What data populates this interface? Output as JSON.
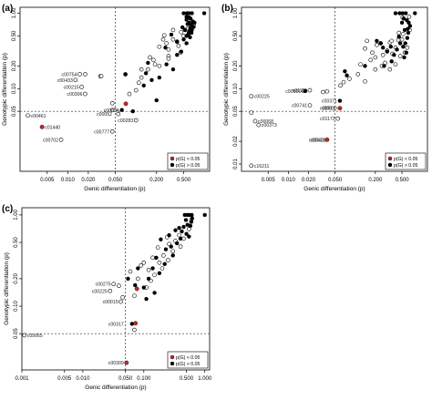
{
  "chart_data": [
    {
      "panel_label": "(a)",
      "type": "scatter",
      "scale": "log-log",
      "xlabel": "Genic differentiation (p)",
      "ylabel": "Genotypic differentiation (p)",
      "xlim": [
        0.002,
        1.2
      ],
      "ylim": [
        0.008,
        1.2
      ],
      "x_ticks": [
        "0.005",
        "0.010",
        "0.020",
        "0.050",
        "0.200",
        "0.500"
      ],
      "x_tick_values": [
        0.005,
        0.01,
        0.02,
        0.05,
        0.2,
        0.5
      ],
      "y_ticks": [
        "0.05",
        "0.10",
        "0.20",
        "0.50",
        "1.00"
      ],
      "y_tick_values": [
        0.05,
        0.1,
        0.2,
        0.5,
        1.0
      ],
      "threshold_x": 0.05,
      "threshold_y": 0.05,
      "legend": {
        "position": "bottom-right",
        "entries": [
          "p(G) < 0.05",
          "p(G) > 0.05"
        ],
        "colors": [
          "#c0282d",
          "#000000"
        ]
      },
      "open_points": [
        [
          0.015,
          0.155
        ],
        [
          0.018,
          0.155
        ],
        [
          0.013,
          0.13
        ],
        [
          0.016,
          0.105
        ],
        [
          0.018,
          0.085
        ],
        [
          0.11,
          0.12
        ],
        [
          0.07,
          0.155
        ],
        [
          0.15,
          0.18
        ],
        [
          0.19,
          0.21
        ],
        [
          0.3,
          0.27
        ],
        [
          0.22,
          0.36
        ],
        [
          0.3,
          0.33
        ],
        [
          0.42,
          0.37
        ],
        [
          0.35,
          0.45
        ],
        [
          0.26,
          0.51
        ],
        [
          0.46,
          0.56
        ],
        [
          0.35,
          0.6
        ],
        [
          0.53,
          0.6
        ],
        [
          0.3,
          0.25
        ],
        [
          0.22,
          0.2
        ],
        [
          0.12,
          0.14
        ],
        [
          0.18,
          0.24
        ],
        [
          0.4,
          0.42
        ],
        [
          0.5,
          0.5
        ],
        [
          0.58,
          0.63
        ],
        [
          0.25,
          0.45
        ],
        [
          0.12,
          0.18
        ],
        [
          0.16,
          0.26
        ],
        [
          0.45,
          0.3
        ],
        [
          0.7,
          0.7
        ],
        [
          0.1,
          0.095
        ],
        [
          0.08,
          0.085
        ],
        [
          0.28,
          0.4
        ],
        [
          0.6,
          0.55
        ],
        [
          0.055,
          0.046
        ],
        [
          0.045,
          0.064
        ],
        [
          0.045,
          0.052
        ],
        [
          0.049,
          0.052
        ],
        [
          0.1,
          0.038
        ],
        [
          0.045,
          0.027
        ],
        [
          0.008,
          0.021
        ],
        [
          0.0026,
          0.044
        ],
        [
          0.03,
          0.146
        ],
        [
          0.031,
          0.146
        ]
      ],
      "filled_points": [
        [
          0.062,
          0.052
        ],
        [
          0.09,
          0.05
        ],
        [
          0.2,
          0.07
        ],
        [
          0.13,
          0.11
        ],
        [
          0.07,
          0.155
        ],
        [
          0.17,
          0.13
        ],
        [
          0.14,
          0.16
        ],
        [
          0.22,
          0.14
        ],
        [
          0.35,
          0.18
        ],
        [
          0.28,
          0.21
        ],
        [
          0.15,
          0.22
        ],
        [
          0.4,
          0.28
        ],
        [
          0.46,
          0.31
        ],
        [
          0.27,
          0.35
        ],
        [
          0.55,
          0.4
        ],
        [
          0.4,
          0.42
        ],
        [
          0.33,
          0.52
        ],
        [
          0.55,
          0.5
        ],
        [
          0.6,
          0.56
        ],
        [
          0.52,
          0.6
        ],
        [
          0.62,
          0.62
        ],
        [
          0.65,
          0.7
        ],
        [
          0.6,
          0.75
        ],
        [
          0.68,
          0.78
        ],
        [
          0.63,
          0.85
        ],
        [
          0.55,
          0.9
        ],
        [
          0.65,
          0.55
        ],
        [
          0.48,
          0.65
        ],
        [
          0.62,
          0.48
        ],
        [
          0.58,
          0.52
        ],
        [
          0.66,
          0.6
        ],
        [
          0.7,
          0.66
        ],
        [
          0.72,
          0.75
        ],
        [
          0.5,
          0.45
        ],
        [
          1.0,
          1.0
        ],
        [
          0.5,
          1.0
        ],
        [
          0.56,
          1.0
        ],
        [
          0.6,
          1.0
        ],
        [
          0.66,
          1.0
        ],
        [
          0.55,
          0.82
        ],
        [
          0.6,
          0.88
        ],
        [
          0.64,
          0.68
        ],
        [
          0.57,
          0.72
        ]
      ],
      "red_points": [
        [
          0.0042,
          0.031
        ],
        [
          0.071,
          0.063
        ]
      ],
      "labeled_points": [
        {
          "label": "c00754",
          "x": 0.015,
          "y": 0.155
        },
        {
          "label": "c00433",
          "x": 0.013,
          "y": 0.13
        },
        {
          "label": "c00215",
          "x": 0.016,
          "y": 0.105
        },
        {
          "label": "c00306",
          "x": 0.018,
          "y": 0.085
        },
        {
          "label": "c00054",
          "x": 0.062,
          "y": 0.052
        },
        {
          "label": "c00052",
          "x": 0.049,
          "y": 0.046
        },
        {
          "label": "c00283",
          "x": 0.1,
          "y": 0.038
        },
        {
          "label": "c00777",
          "x": 0.045,
          "y": 0.027
        },
        {
          "label": "c00702",
          "x": 0.008,
          "y": 0.021
        },
        {
          "label": "c01440",
          "x": 0.0042,
          "y": 0.031
        },
        {
          "label": "c00461",
          "x": 0.0026,
          "y": 0.044
        }
      ]
    },
    {
      "panel_label": "(b)",
      "type": "scatter",
      "scale": "log-log",
      "xlabel": "Genic differentiation (p)",
      "ylabel": "Genotypic differentiation (p)",
      "xlim": [
        0.002,
        1.2
      ],
      "ylim": [
        0.008,
        1.2
      ],
      "x_ticks": [
        "0.005",
        "0.010",
        "0.020",
        "0.050",
        "0.200",
        "0.500"
      ],
      "x_tick_values": [
        0.005,
        0.01,
        0.02,
        0.05,
        0.2,
        0.5
      ],
      "y_ticks": [
        "0.01",
        "0.02",
        "0.05",
        "0.10",
        "0.20",
        "0.50",
        "1.00"
      ],
      "y_tick_values": [
        0.01,
        0.02,
        0.05,
        0.1,
        0.2,
        0.5,
        1.0
      ],
      "threshold_x": 0.05,
      "threshold_y": 0.05,
      "legend": {
        "position": "bottom-right",
        "entries": [
          "p(G) < 0.05",
          "p(G) > 0.05"
        ],
        "colors": [
          "#c0282d",
          "#000000"
        ]
      },
      "open_points": [
        [
          0.0028,
          0.079
        ],
        [
          0.0028,
          0.0095
        ],
        [
          0.0028,
          0.048
        ],
        [
          0.0032,
          0.037
        ],
        [
          0.0036,
          0.033
        ],
        [
          0.017,
          0.093
        ],
        [
          0.021,
          0.095
        ],
        [
          0.021,
          0.06
        ],
        [
          0.033,
          0.09
        ],
        [
          0.038,
          0.092
        ],
        [
          0.055,
          0.04
        ],
        [
          0.067,
          0.122
        ],
        [
          0.082,
          0.135
        ],
        [
          0.11,
          0.155
        ],
        [
          0.06,
          0.11
        ],
        [
          0.14,
          0.125
        ],
        [
          0.2,
          0.18
        ],
        [
          0.17,
          0.24
        ],
        [
          0.25,
          0.2
        ],
        [
          0.14,
          0.34
        ],
        [
          0.3,
          0.32
        ],
        [
          0.33,
          0.41
        ],
        [
          0.21,
          0.38
        ],
        [
          0.4,
          0.35
        ],
        [
          0.5,
          0.45
        ],
        [
          0.45,
          0.55
        ],
        [
          0.36,
          0.29
        ],
        [
          0.26,
          0.28
        ],
        [
          0.18,
          0.3
        ],
        [
          0.55,
          0.3
        ],
        [
          0.52,
          0.53
        ],
        [
          0.4,
          0.21
        ],
        [
          0.35,
          0.43
        ],
        [
          0.44,
          0.44
        ],
        [
          0.6,
          0.35
        ],
        [
          0.65,
          0.6
        ],
        [
          0.51,
          0.88
        ],
        [
          0.64,
          0.9
        ],
        [
          0.15,
          0.43
        ],
        [
          0.24,
          0.4
        ],
        [
          0.28,
          0.22
        ],
        [
          0.33,
          0.18
        ],
        [
          0.2,
          0.26
        ],
        [
          0.12,
          0.21
        ],
        [
          0.47,
          0.27
        ]
      ],
      "filled_points": [
        [
          0.018,
          0.093
        ],
        [
          0.059,
          0.069
        ],
        [
          0.075,
          0.15
        ],
        [
          0.07,
          0.17
        ],
        [
          0.14,
          0.2
        ],
        [
          0.26,
          0.35
        ],
        [
          0.24,
          0.4
        ],
        [
          0.35,
          0.23
        ],
        [
          0.3,
          0.31
        ],
        [
          0.38,
          0.28
        ],
        [
          0.42,
          0.33
        ],
        [
          0.47,
          0.4
        ],
        [
          0.52,
          0.36
        ],
        [
          0.54,
          0.26
        ],
        [
          0.6,
          0.47
        ],
        [
          0.62,
          0.55
        ],
        [
          0.55,
          0.6
        ],
        [
          0.56,
          0.4
        ],
        [
          0.5,
          0.75
        ],
        [
          0.63,
          0.75
        ],
        [
          0.53,
          0.85
        ],
        [
          0.61,
          0.62
        ],
        [
          0.58,
          0.3
        ],
        [
          0.45,
          0.49
        ],
        [
          0.66,
          0.68
        ],
        [
          0.34,
          0.36
        ],
        [
          0.27,
          0.2
        ],
        [
          0.21,
          0.43
        ],
        [
          0.4,
          1.0
        ],
        [
          0.46,
          1.0
        ],
        [
          0.51,
          1.0
        ],
        [
          0.57,
          1.0
        ],
        [
          0.78,
          1.0
        ],
        [
          0.59,
          0.81
        ]
      ],
      "red_points": [
        [
          0.059,
          0.055
        ],
        [
          0.038,
          0.021
        ]
      ],
      "labeled_points": [
        {
          "label": "c00225",
          "x": 0.0028,
          "y": 0.079
        },
        {
          "label": "c00501",
          "x": 0.017,
          "y": 0.093
        },
        {
          "label": "c01115",
          "x": 0.021,
          "y": 0.095
        },
        {
          "label": "c00371",
          "x": 0.059,
          "y": 0.069
        },
        {
          "label": "c00741",
          "x": 0.021,
          "y": 0.06
        },
        {
          "label": "c00511",
          "x": 0.055,
          "y": 0.055
        },
        {
          "label": "c00699",
          "x": 0.059,
          "y": 0.055
        },
        {
          "label": "c00068",
          "x": 0.0032,
          "y": 0.037
        },
        {
          "label": "c00373",
          "x": 0.0036,
          "y": 0.033
        },
        {
          "label": "c00533",
          "x": 0.038,
          "y": 0.021
        },
        {
          "label": "c00401",
          "x": 0.04,
          "y": 0.021
        },
        {
          "label": "c01172",
          "x": 0.055,
          "y": 0.04
        },
        {
          "label": "c16211",
          "x": 0.0028,
          "y": 0.0095
        }
      ]
    },
    {
      "panel_label": "(c)",
      "type": "scatter",
      "scale": "log-log",
      "xlabel": "Genic differentiation (p)",
      "ylabel": "Genotypic differentiation (p)",
      "xlim": [
        0.001,
        1.2
      ],
      "ylim": [
        0.02,
        1.2
      ],
      "x_ticks": [
        "0.001",
        "0.005",
        "0.010",
        "0.050",
        "0.100",
        "0.500",
        "1.000"
      ],
      "x_tick_values": [
        0.001,
        0.005,
        0.01,
        0.05,
        0.1,
        0.5,
        1.0
      ],
      "y_ticks": [
        "0.05",
        "0.10",
        "0.20",
        "0.50",
        "1.00"
      ],
      "y_tick_values": [
        0.05,
        0.1,
        0.2,
        0.5,
        1.0
      ],
      "threshold_x": 0.05,
      "threshold_y": 0.05,
      "legend": {
        "position": "bottom-right",
        "entries": [
          "p(G) < 0.05",
          "p(G) > 0.05"
        ],
        "colors": [
          "#c0282d",
          "#000000"
        ]
      },
      "open_points": [
        [
          0.032,
          0.175
        ],
        [
          0.039,
          0.167
        ],
        [
          0.028,
          0.147
        ],
        [
          0.045,
          0.125
        ],
        [
          0.042,
          0.112
        ],
        [
          0.07,
          0.13
        ],
        [
          0.08,
          0.2
        ],
        [
          0.11,
          0.16
        ],
        [
          0.12,
          0.25
        ],
        [
          0.09,
          0.28
        ],
        [
          0.15,
          0.22
        ],
        [
          0.18,
          0.3
        ],
        [
          0.14,
          0.34
        ],
        [
          0.21,
          0.36
        ],
        [
          0.17,
          0.44
        ],
        [
          0.26,
          0.48
        ],
        [
          0.3,
          0.4
        ],
        [
          0.33,
          0.52
        ],
        [
          0.24,
          0.57
        ],
        [
          0.38,
          0.6
        ],
        [
          0.4,
          0.45
        ],
        [
          0.45,
          0.55
        ],
        [
          0.2,
          0.26
        ],
        [
          0.25,
          0.32
        ],
        [
          0.13,
          0.19
        ],
        [
          0.55,
          0.7
        ],
        [
          0.6,
          0.88
        ],
        [
          0.06,
          0.24
        ],
        [
          0.1,
          0.3
        ],
        [
          0.07,
          0.055
        ],
        [
          0.0011,
          0.048
        ]
      ],
      "filled_points": [
        [
          0.064,
          0.064
        ],
        [
          0.072,
          0.17
        ],
        [
          0.055,
          0.2
        ],
        [
          0.08,
          0.26
        ],
        [
          0.1,
          0.16
        ],
        [
          0.12,
          0.2
        ],
        [
          0.14,
          0.26
        ],
        [
          0.18,
          0.23
        ],
        [
          0.16,
          0.34
        ],
        [
          0.22,
          0.29
        ],
        [
          0.23,
          0.42
        ],
        [
          0.3,
          0.36
        ],
        [
          0.28,
          0.45
        ],
        [
          0.35,
          0.49
        ],
        [
          0.4,
          0.55
        ],
        [
          0.42,
          0.66
        ],
        [
          0.45,
          0.74
        ],
        [
          0.5,
          0.62
        ],
        [
          0.55,
          0.58
        ],
        [
          0.52,
          0.78
        ],
        [
          0.58,
          0.76
        ],
        [
          0.6,
          0.84
        ],
        [
          0.62,
          0.92
        ],
        [
          0.19,
          0.54
        ],
        [
          0.26,
          0.6
        ],
        [
          0.33,
          0.68
        ],
        [
          0.38,
          0.72
        ],
        [
          0.11,
          0.12
        ],
        [
          0.15,
          0.14
        ],
        [
          0.47,
          1.0
        ],
        [
          0.52,
          1.0
        ],
        [
          0.56,
          1.0
        ],
        [
          0.61,
          1.0
        ],
        [
          1.0,
          1.0
        ],
        [
          0.49,
          0.88
        ]
      ],
      "red_points": [
        [
          0.052,
          0.024
        ],
        [
          0.073,
          0.065
        ],
        [
          0.077,
          0.155
        ]
      ],
      "labeled_points": [
        {
          "label": "c00275",
          "x": 0.032,
          "y": 0.175
        },
        {
          "label": "c00225",
          "x": 0.028,
          "y": 0.147
        },
        {
          "label": "c00015",
          "x": 0.042,
          "y": 0.112
        },
        {
          "label": "c00317",
          "x": 0.052,
          "y": 0.064
        },
        {
          "label": "c00309",
          "x": 0.052,
          "y": 0.024
        },
        {
          "label": "c05665",
          "x": 0.0011,
          "y": 0.048
        }
      ]
    }
  ]
}
